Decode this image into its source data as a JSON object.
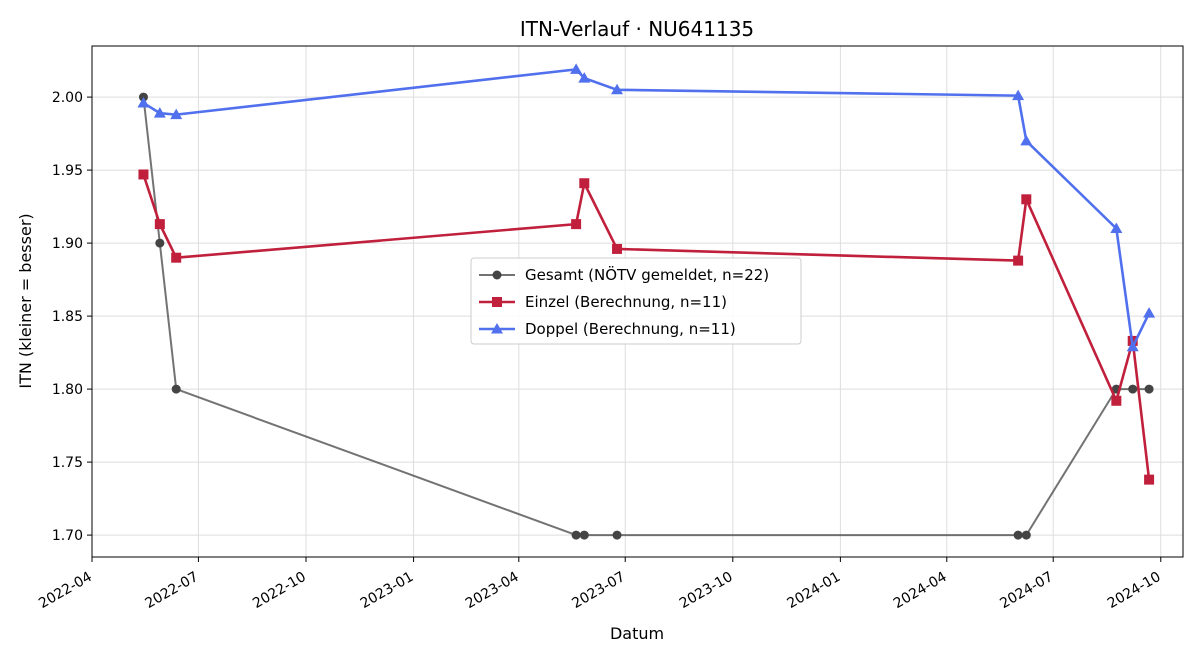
{
  "chart_data": {
    "type": "line",
    "title": "ITN-Verlauf · NU641135",
    "xlabel": "Datum",
    "ylabel": "ITN  (kleiner = besser)",
    "x_ticks": [
      "2022-04",
      "2022-07",
      "2022-10",
      "2023-01",
      "2023-04",
      "2023-07",
      "2023-10",
      "2024-01",
      "2024-04",
      "2024-07",
      "2024-10"
    ],
    "y_ticks": [
      "1.70",
      "1.75",
      "1.80",
      "1.85",
      "1.90",
      "1.95",
      "2.00"
    ],
    "xlim": [
      "2022-04-01",
      "2024-10-20"
    ],
    "ylim": [
      1.685,
      2.035
    ],
    "grid": true,
    "legend_position": "center",
    "series": [
      {
        "name": "Gesamt (NÖTV gemeldet, n=22)",
        "color": "#444444",
        "marker": "circle",
        "x": [
          "2022-05-15",
          "2022-05-29",
          "2022-06-12",
          "2023-05-20",
          "2023-05-27",
          "2023-06-24",
          "2024-06-01",
          "2024-06-08",
          "2024-08-24",
          "2024-09-07",
          "2024-09-21"
        ],
        "y": [
          2.0,
          1.9,
          1.8,
          1.7,
          1.7,
          1.7,
          1.7,
          1.7,
          1.8,
          1.8,
          1.8
        ]
      },
      {
        "name": "Einzel (Berechnung, n=11)",
        "color": "#c0203c",
        "marker": "square",
        "x": [
          "2022-05-15",
          "2022-05-29",
          "2022-06-12",
          "2023-05-20",
          "2023-05-27",
          "2023-06-24",
          "2024-06-01",
          "2024-06-08",
          "2024-08-24",
          "2024-09-07",
          "2024-09-21"
        ],
        "y": [
          1.947,
          1.913,
          1.89,
          1.913,
          1.941,
          1.896,
          1.888,
          1.93,
          1.792,
          1.833,
          1.738
        ]
      },
      {
        "name": "Doppel (Berechnung, n=11)",
        "color": "#5070ee",
        "marker": "triangle",
        "x": [
          "2022-05-15",
          "2022-05-29",
          "2022-06-12",
          "2023-05-20",
          "2023-05-27",
          "2023-06-24",
          "2024-06-01",
          "2024-06-08",
          "2024-08-24",
          "2024-09-07",
          "2024-09-21"
        ],
        "y": [
          1.996,
          1.989,
          1.988,
          2.019,
          2.013,
          2.005,
          2.001,
          1.97,
          1.91,
          1.829,
          1.852
        ]
      }
    ]
  }
}
